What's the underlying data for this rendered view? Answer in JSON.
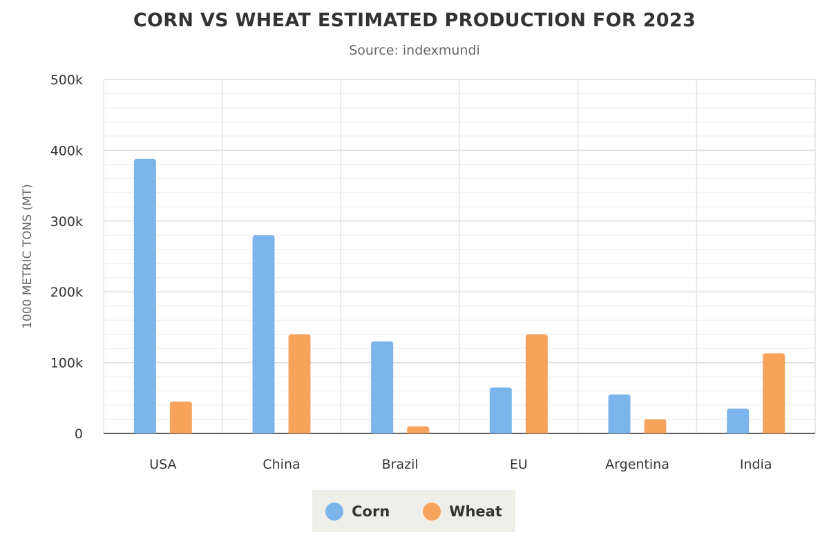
{
  "chart_data": {
    "type": "bar",
    "title": "CORN VS WHEAT ESTIMATED PRODUCTION FOR 2023",
    "subtitle": "Source: indexmundi",
    "ylabel": "1000 METRIC TONS (MT)",
    "xlabel": "",
    "categories": [
      "USA",
      "China",
      "Brazil",
      "EU",
      "Argentina",
      "India"
    ],
    "series": [
      {
        "name": "Corn",
        "color": "#7cb5ec",
        "values": [
          388000,
          280000,
          130000,
          65000,
          55000,
          35000
        ]
      },
      {
        "name": "Wheat",
        "color": "#f7a35c",
        "values": [
          45000,
          140000,
          10000,
          140000,
          20000,
          113000
        ]
      }
    ],
    "ylim": [
      0,
      500000
    ],
    "yticks": [
      0,
      100000,
      200000,
      300000,
      400000,
      500000
    ],
    "ytick_labels": [
      "0",
      "100k",
      "200k",
      "300k",
      "400k",
      "500k"
    ],
    "grid": true,
    "minor_grid": true,
    "legend_position": "bottom-center"
  }
}
